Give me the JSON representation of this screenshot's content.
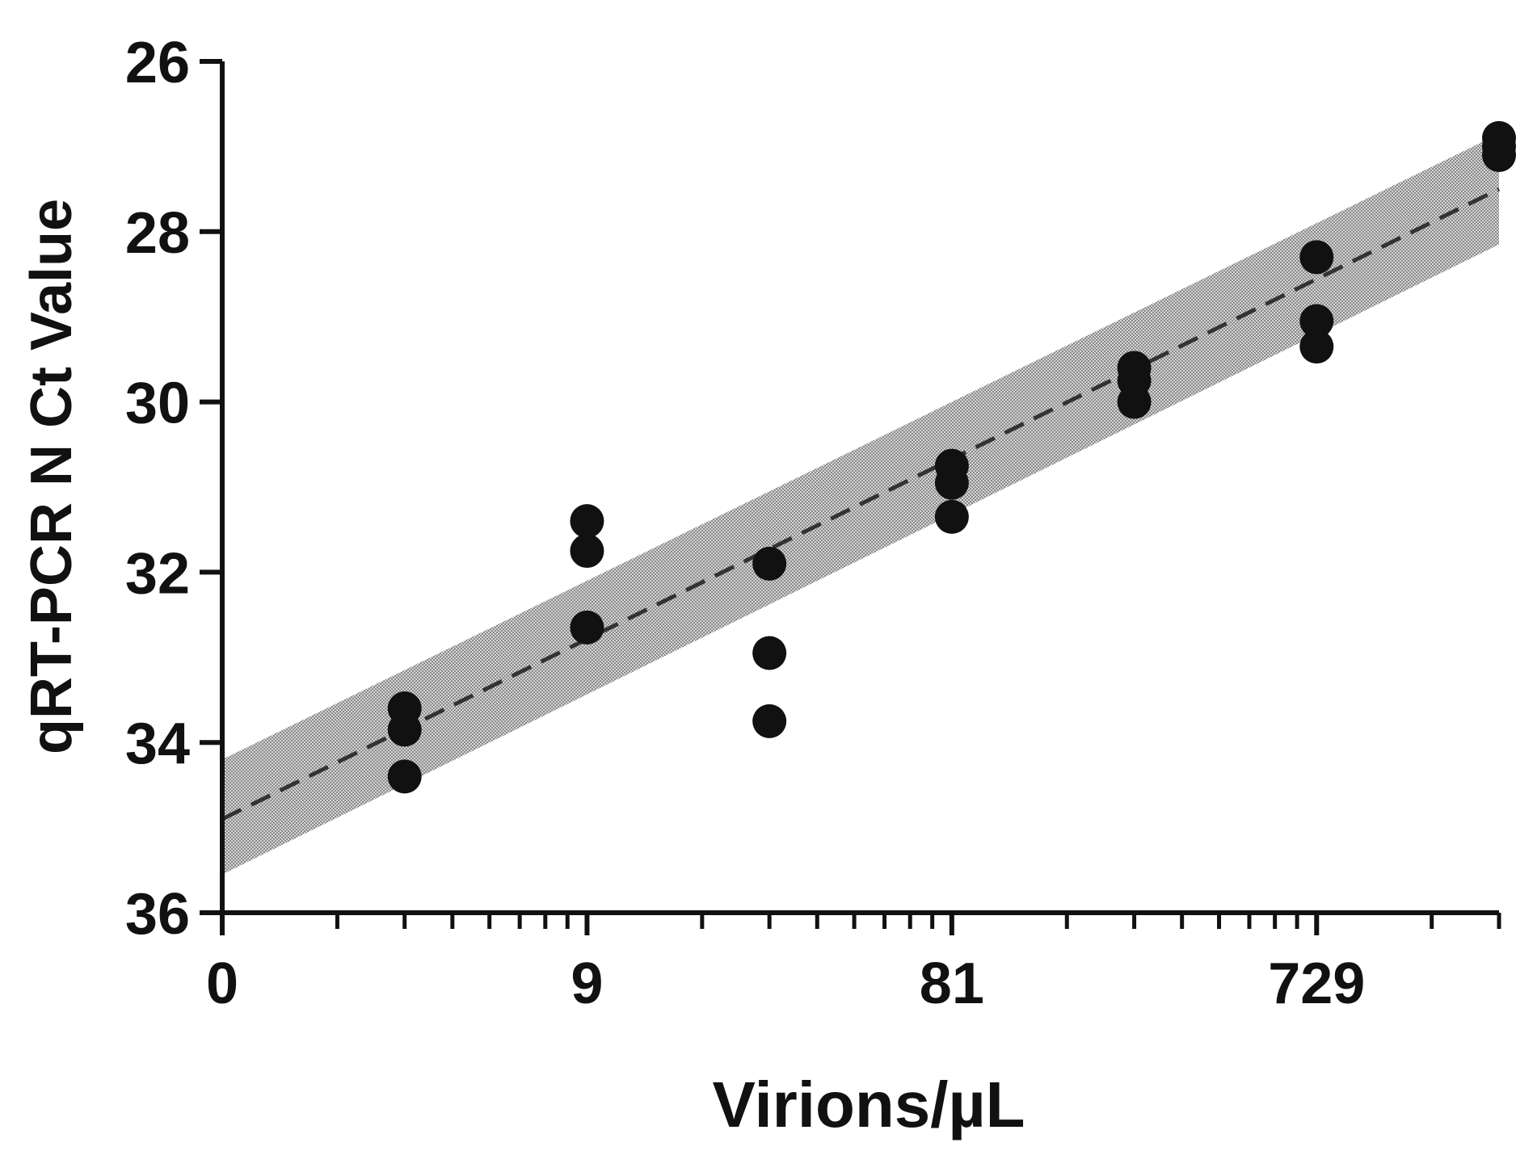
{
  "chart_data": {
    "type": "scatter",
    "title": "",
    "xlabel": "Virions/µL",
    "ylabel": "qRT-PCR N Ct Value",
    "x_scale": "log3",
    "x_ticks_major": [
      {
        "value": 1,
        "label": "0"
      },
      {
        "value": 9,
        "label": "9"
      },
      {
        "value": 81,
        "label": "81"
      },
      {
        "value": 729,
        "label": "729"
      }
    ],
    "xlim": [
      1,
      2187
    ],
    "y_reversed": true,
    "y_ticks": [
      {
        "value": 26,
        "label": "26"
      },
      {
        "value": 28,
        "label": "28"
      },
      {
        "value": 30,
        "label": "30"
      },
      {
        "value": 32,
        "label": "32"
      },
      {
        "value": 34,
        "label": "34"
      },
      {
        "value": 36,
        "label": "36"
      }
    ],
    "ylim": [
      26,
      36
    ],
    "grid": false,
    "colors": {
      "points": "#111111",
      "fit_line": "#333333",
      "confidence_band": "#a8a8a8",
      "axis": "#111111"
    },
    "series": [
      {
        "points": [
          {
            "x": 3,
            "y": 33.6
          },
          {
            "x": 3,
            "y": 33.85
          },
          {
            "x": 3,
            "y": 34.4
          },
          {
            "x": 9,
            "y": 31.4
          },
          {
            "x": 9,
            "y": 31.75
          },
          {
            "x": 9,
            "y": 32.65
          },
          {
            "x": 27,
            "y": 31.9
          },
          {
            "x": 27,
            "y": 32.95
          },
          {
            "x": 27,
            "y": 33.75
          },
          {
            "x": 81,
            "y": 30.75
          },
          {
            "x": 81,
            "y": 30.95
          },
          {
            "x": 81,
            "y": 31.35
          },
          {
            "x": 243,
            "y": 29.6
          },
          {
            "x": 243,
            "y": 29.75
          },
          {
            "x": 243,
            "y": 30.0
          },
          {
            "x": 729,
            "y": 28.3
          },
          {
            "x": 729,
            "y": 29.05
          },
          {
            "x": 729,
            "y": 29.35
          },
          {
            "x": 2187,
            "y": 26.9
          },
          {
            "x": 2187,
            "y": 27.0
          },
          {
            "x": 2187,
            "y": 27.1
          }
        ]
      }
    ],
    "fit_line": {
      "style": "dashed",
      "start": {
        "x": 1,
        "y": 34.9
      },
      "end": {
        "x": 2187,
        "y": 27.5
      }
    },
    "confidence_band": {
      "start": {
        "x": 1,
        "y_low": 34.2,
        "y_high": 35.55
      },
      "end": {
        "x": 2187,
        "y_low": 26.85,
        "y_high": 28.15
      }
    }
  }
}
